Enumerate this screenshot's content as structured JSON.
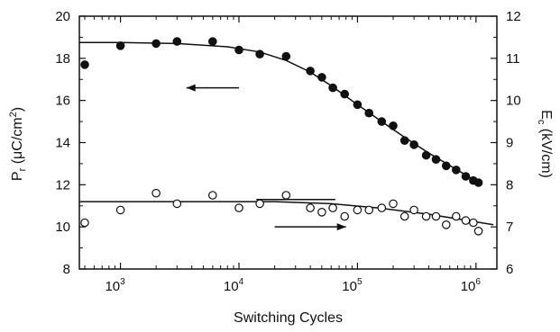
{
  "chart_data": {
    "type": "scatter",
    "title": "",
    "xlabel": "Switching Cycles",
    "ylabel_left": "P_r (μC/cm²)",
    "ylabel_right": "E_c (kV/cm)",
    "xscale": "log",
    "xlim": [
      450,
      1500000
    ],
    "ylim_left": [
      8,
      20
    ],
    "ylim_right": [
      6,
      12
    ],
    "x_ticks": [
      {
        "exp": 3,
        "label": "10",
        "sup": "3"
      },
      {
        "exp": 4,
        "label": "10",
        "sup": "4"
      },
      {
        "exp": 5,
        "label": "10",
        "sup": "5"
      },
      {
        "exp": 6,
        "label": "10",
        "sup": "6"
      }
    ],
    "y_ticks_left": [
      "8",
      "10",
      "12",
      "14",
      "16",
      "18",
      "20"
    ],
    "y_ticks_right": [
      "6",
      "7",
      "8",
      "9",
      "10",
      "11",
      "12"
    ],
    "grid": false,
    "series": [
      {
        "marker": "filled-circle",
        "axis": "left",
        "points": [
          {
            "x": 500,
            "y": 17.7
          },
          {
            "x": 1000,
            "y": 18.6
          },
          {
            "x": 2000,
            "y": 18.7
          },
          {
            "x": 3000,
            "y": 18.8
          },
          {
            "x": 6000,
            "y": 18.8
          },
          {
            "x": 10000,
            "y": 18.4
          },
          {
            "x": 15000,
            "y": 18.2
          },
          {
            "x": 25000,
            "y": 18.1
          },
          {
            "x": 40000,
            "y": 17.4
          },
          {
            "x": 50000,
            "y": 17.1
          },
          {
            "x": 62000,
            "y": 16.6
          },
          {
            "x": 78000,
            "y": 16.3
          },
          {
            "x": 100000,
            "y": 15.8
          },
          {
            "x": 125000,
            "y": 15.4
          },
          {
            "x": 160000,
            "y": 15.0
          },
          {
            "x": 200000,
            "y": 14.8
          },
          {
            "x": 250000,
            "y": 14.1
          },
          {
            "x": 300000,
            "y": 13.9
          },
          {
            "x": 380000,
            "y": 13.4
          },
          {
            "x": 460000,
            "y": 13.2
          },
          {
            "x": 560000,
            "y": 12.9
          },
          {
            "x": 680000,
            "y": 12.7
          },
          {
            "x": 820000,
            "y": 12.4
          },
          {
            "x": 950000,
            "y": 12.2
          },
          {
            "x": 1050000,
            "y": 12.1
          }
        ]
      },
      {
        "marker": "open-circle",
        "axis": "right",
        "points": [
          {
            "x": 500,
            "y": 7.1
          },
          {
            "x": 1000,
            "y": 7.4
          },
          {
            "x": 2000,
            "y": 7.8
          },
          {
            "x": 3000,
            "y": 7.55
          },
          {
            "x": 6000,
            "y": 7.75
          },
          {
            "x": 10000,
            "y": 7.45
          },
          {
            "x": 15000,
            "y": 7.55
          },
          {
            "x": 25000,
            "y": 7.75
          },
          {
            "x": 40000,
            "y": 7.45
          },
          {
            "x": 50000,
            "y": 7.35
          },
          {
            "x": 62000,
            "y": 7.45
          },
          {
            "x": 78000,
            "y": 7.25
          },
          {
            "x": 100000,
            "y": 7.4
          },
          {
            "x": 125000,
            "y": 7.4
          },
          {
            "x": 160000,
            "y": 7.45
          },
          {
            "x": 200000,
            "y": 7.55
          },
          {
            "x": 250000,
            "y": 7.25
          },
          {
            "x": 300000,
            "y": 7.4
          },
          {
            "x": 380000,
            "y": 7.25
          },
          {
            "x": 460000,
            "y": 7.25
          },
          {
            "x": 560000,
            "y": 7.05
          },
          {
            "x": 680000,
            "y": 7.25
          },
          {
            "x": 820000,
            "y": 7.15
          },
          {
            "x": 950000,
            "y": 7.1
          },
          {
            "x": 1050000,
            "y": 6.9
          }
        ]
      }
    ],
    "fit_curves": [
      {
        "axis": "left",
        "points": [
          {
            "x": 450,
            "y": 18.75
          },
          {
            "x": 1000,
            "y": 18.75
          },
          {
            "x": 3000,
            "y": 18.7
          },
          {
            "x": 8000,
            "y": 18.55
          },
          {
            "x": 15000,
            "y": 18.3
          },
          {
            "x": 25000,
            "y": 17.9
          },
          {
            "x": 40000,
            "y": 17.35
          },
          {
            "x": 60000,
            "y": 16.7
          },
          {
            "x": 100000,
            "y": 15.8
          },
          {
            "x": 160000,
            "y": 15.0
          },
          {
            "x": 250000,
            "y": 14.25
          },
          {
            "x": 400000,
            "y": 13.5
          },
          {
            "x": 650000,
            "y": 12.8
          },
          {
            "x": 1050000,
            "y": 12.1
          }
        ]
      },
      {
        "axis": "right",
        "points": [
          {
            "x": 450,
            "y": 7.6
          },
          {
            "x": 20000,
            "y": 7.6
          },
          {
            "x": 60000,
            "y": 7.55
          },
          {
            "x": 150000,
            "y": 7.45
          },
          {
            "x": 400000,
            "y": 7.3
          },
          {
            "x": 1400000,
            "y": 7.05
          }
        ]
      },
      {
        "axis": "right",
        "points": [
          {
            "x": 14000,
            "y": 7.65
          },
          {
            "x": 65000,
            "y": 7.65
          }
        ]
      }
    ],
    "arrows": [
      {
        "axis": "left",
        "direction": "left",
        "from": {
          "x": 10000,
          "y": 16.6
        },
        "to": {
          "x": 3600,
          "y": 16.6
        }
      },
      {
        "axis": "right",
        "direction": "right",
        "from": {
          "x": 20000,
          "y": 7.0
        },
        "to": {
          "x": 80000,
          "y": 7.0
        }
      }
    ]
  }
}
